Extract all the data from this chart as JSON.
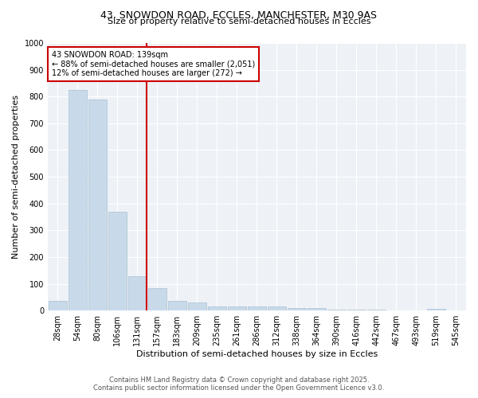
{
  "title1": "43, SNOWDON ROAD, ECCLES, MANCHESTER, M30 9AS",
  "title2": "Size of property relative to semi-detached houses in Eccles",
  "xlabel": "Distribution of semi-detached houses by size in Eccles",
  "ylabel": "Number of semi-detached properties",
  "categories": [
    "28sqm",
    "54sqm",
    "80sqm",
    "106sqm",
    "131sqm",
    "157sqm",
    "183sqm",
    "209sqm",
    "235sqm",
    "261sqm",
    "286sqm",
    "312sqm",
    "338sqm",
    "364sqm",
    "390sqm",
    "416sqm",
    "442sqm",
    "467sqm",
    "493sqm",
    "519sqm",
    "545sqm"
  ],
  "values": [
    35,
    825,
    790,
    370,
    130,
    85,
    35,
    30,
    15,
    15,
    15,
    15,
    10,
    10,
    5,
    5,
    5,
    0,
    0,
    8,
    0
  ],
  "bar_color": "#c8daea",
  "bar_edge_color": "#aabfcf",
  "property_line_index": 4,
  "property_line_color": "#cc0000",
  "annotation_line1": "43 SNOWDON ROAD: 139sqm",
  "annotation_line2": "← 88% of semi-detached houses are smaller (2,051)",
  "annotation_line3": "12% of semi-detached houses are larger (272) →",
  "annotation_box_color": "#cc0000",
  "ylim": [
    0,
    1000
  ],
  "yticks": [
    0,
    100,
    200,
    300,
    400,
    500,
    600,
    700,
    800,
    900,
    1000
  ],
  "footer1": "Contains HM Land Registry data © Crown copyright and database right 2025.",
  "footer2": "Contains public sector information licensed under the Open Government Licence v3.0.",
  "bg_color": "#ffffff",
  "plot_bg_color": "#eef2f7"
}
